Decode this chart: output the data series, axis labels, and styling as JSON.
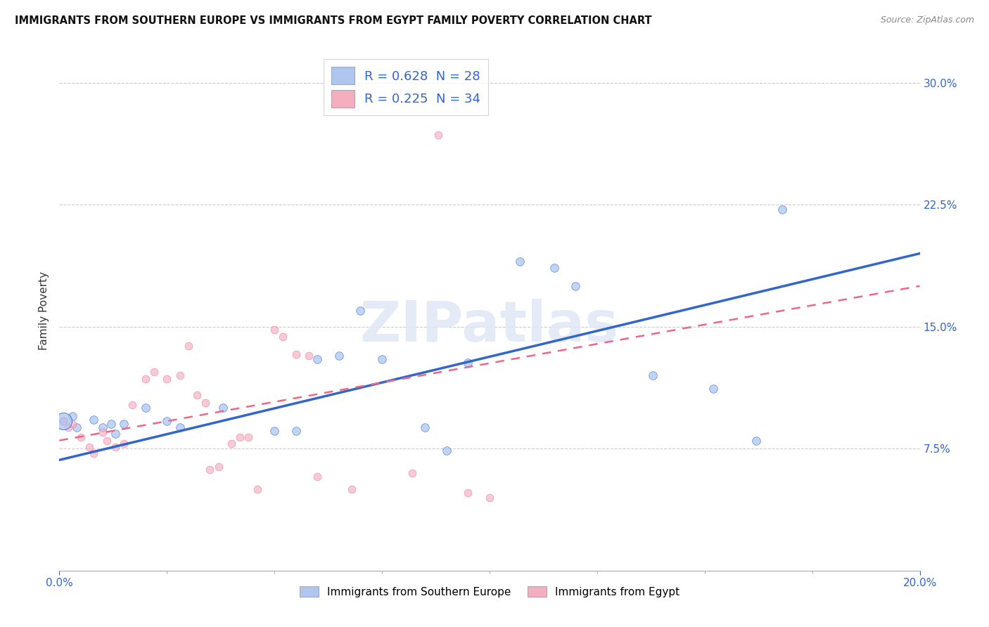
{
  "title": "IMMIGRANTS FROM SOUTHERN EUROPE VS IMMIGRANTS FROM EGYPT FAMILY POVERTY CORRELATION CHART",
  "source": "Source: ZipAtlas.com",
  "ylabel": "Family Poverty",
  "ytick_values": [
    0.075,
    0.15,
    0.225,
    0.3
  ],
  "xlim": [
    0.0,
    0.2
  ],
  "ylim": [
    0.0,
    0.32
  ],
  "legend_entries": [
    {
      "label": "R = 0.628  N = 28",
      "color": "#aec6f0"
    },
    {
      "label": "R = 0.225  N = 34",
      "color": "#f5aec0"
    }
  ],
  "legend_bottom": [
    "Immigrants from Southern Europe",
    "Immigrants from Egypt"
  ],
  "blue_color": "#aec6f0",
  "pink_color": "#f5aec0",
  "blue_line_color": "#3366cc",
  "pink_line_color": "#ee6688",
  "watermark": "ZIPatlas",
  "blue_scatter": [
    [
      0.001,
      0.092
    ],
    [
      0.003,
      0.095
    ],
    [
      0.004,
      0.088
    ],
    [
      0.008,
      0.093
    ],
    [
      0.01,
      0.088
    ],
    [
      0.012,
      0.09
    ],
    [
      0.013,
      0.084
    ],
    [
      0.015,
      0.09
    ],
    [
      0.02,
      0.1
    ],
    [
      0.025,
      0.092
    ],
    [
      0.028,
      0.088
    ],
    [
      0.038,
      0.1
    ],
    [
      0.05,
      0.086
    ],
    [
      0.055,
      0.086
    ],
    [
      0.06,
      0.13
    ],
    [
      0.065,
      0.132
    ],
    [
      0.07,
      0.16
    ],
    [
      0.075,
      0.13
    ],
    [
      0.085,
      0.088
    ],
    [
      0.09,
      0.074
    ],
    [
      0.095,
      0.128
    ],
    [
      0.107,
      0.19
    ],
    [
      0.115,
      0.186
    ],
    [
      0.12,
      0.175
    ],
    [
      0.138,
      0.12
    ],
    [
      0.152,
      0.112
    ],
    [
      0.162,
      0.08
    ],
    [
      0.168,
      0.222
    ]
  ],
  "pink_scatter": [
    [
      0.001,
      0.092
    ],
    [
      0.002,
      0.088
    ],
    [
      0.003,
      0.09
    ],
    [
      0.005,
      0.082
    ],
    [
      0.007,
      0.076
    ],
    [
      0.008,
      0.072
    ],
    [
      0.01,
      0.085
    ],
    [
      0.011,
      0.08
    ],
    [
      0.013,
      0.076
    ],
    [
      0.015,
      0.078
    ],
    [
      0.017,
      0.102
    ],
    [
      0.02,
      0.118
    ],
    [
      0.022,
      0.122
    ],
    [
      0.025,
      0.118
    ],
    [
      0.028,
      0.12
    ],
    [
      0.03,
      0.138
    ],
    [
      0.032,
      0.108
    ],
    [
      0.034,
      0.103
    ],
    [
      0.035,
      0.062
    ],
    [
      0.037,
      0.064
    ],
    [
      0.04,
      0.078
    ],
    [
      0.042,
      0.082
    ],
    [
      0.044,
      0.082
    ],
    [
      0.046,
      0.05
    ],
    [
      0.05,
      0.148
    ],
    [
      0.052,
      0.144
    ],
    [
      0.055,
      0.133
    ],
    [
      0.058,
      0.132
    ],
    [
      0.06,
      0.058
    ],
    [
      0.068,
      0.05
    ],
    [
      0.082,
      0.06
    ],
    [
      0.088,
      0.268
    ],
    [
      0.095,
      0.048
    ],
    [
      0.1,
      0.045
    ]
  ],
  "blue_line": [
    [
      0.0,
      0.068
    ],
    [
      0.2,
      0.195
    ]
  ],
  "pink_line": [
    [
      0.0,
      0.08
    ],
    [
      0.2,
      0.175
    ]
  ]
}
